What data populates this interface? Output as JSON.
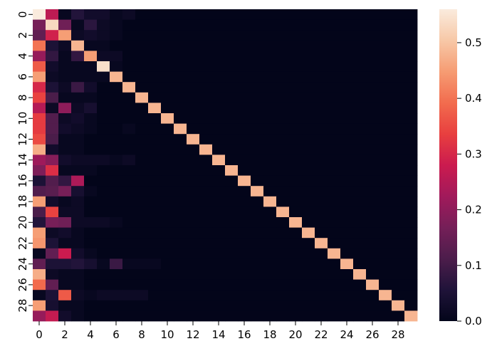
{
  "chart_data": {
    "type": "heatmap",
    "title": "",
    "xlabel": "",
    "ylabel": "",
    "rows": 30,
    "cols": 30,
    "x_tick_labels": [
      "0",
      "2",
      "4",
      "6",
      "8",
      "10",
      "12",
      "14",
      "16",
      "18",
      "20",
      "22",
      "24",
      "26",
      "28"
    ],
    "y_tick_labels": [
      "0",
      "2",
      "4",
      "6",
      "8",
      "10",
      "12",
      "14",
      "16",
      "18",
      "20",
      "22",
      "24",
      "26",
      "28"
    ],
    "x_tick_values": [
      0,
      2,
      4,
      6,
      8,
      10,
      12,
      14,
      16,
      18,
      20,
      22,
      24,
      26,
      28
    ],
    "y_tick_values": [
      0,
      2,
      4,
      6,
      8,
      10,
      12,
      14,
      16,
      18,
      20,
      22,
      24,
      26,
      28
    ],
    "colorbar": {
      "vmin": 0.0,
      "vmax": 0.56,
      "ticks": [
        0.0,
        0.1,
        0.2,
        0.3,
        0.4,
        0.5
      ],
      "tick_labels": [
        "0.0",
        "0.1",
        "0.2",
        "0.3",
        "0.4",
        "0.5"
      ],
      "colormap": "rocket",
      "stops": [
        {
          "v": 0.0,
          "color": "#03051a"
        },
        {
          "v": 0.1,
          "color": "#1f1339"
        },
        {
          "v": 0.2,
          "color": "#4c1d4b"
        },
        {
          "v": 0.3,
          "color": "#751f58"
        },
        {
          "v": 0.4,
          "color": "#a11a5b"
        },
        {
          "v": 0.5,
          "color": "#cb1b4f"
        },
        {
          "v": 0.6,
          "color": "#e83f3f"
        },
        {
          "v": 0.7,
          "color": "#f26c4e"
        },
        {
          "v": 0.8,
          "color": "#f69c73"
        },
        {
          "v": 0.9,
          "color": "#f7c8a7"
        },
        {
          "v": 1.0,
          "color": "#faebdd"
        }
      ]
    },
    "values": [
      [
        0.56,
        0.26,
        0.01,
        0.06,
        0.03,
        0.03,
        0.01,
        0.02,
        0,
        0,
        0,
        0,
        0,
        0,
        0,
        0,
        0,
        0,
        0,
        0,
        0,
        0,
        0,
        0,
        0,
        0,
        0,
        0,
        0,
        0
      ],
      [
        0.17,
        0.53,
        0.16,
        0.01,
        0.07,
        0.02,
        0.01,
        0,
        0,
        0,
        0,
        0,
        0,
        0,
        0,
        0,
        0,
        0,
        0,
        0,
        0,
        0,
        0,
        0,
        0,
        0,
        0,
        0,
        0,
        0
      ],
      [
        0.14,
        0.29,
        0.45,
        0.02,
        0.03,
        0.02,
        0.01,
        0,
        0,
        0,
        0,
        0,
        0,
        0,
        0,
        0,
        0,
        0,
        0,
        0,
        0,
        0,
        0,
        0,
        0,
        0,
        0,
        0,
        0,
        0
      ],
      [
        0.4,
        0.05,
        0.02,
        0.48,
        0.01,
        0.01,
        0,
        0,
        0,
        0,
        0,
        0,
        0,
        0,
        0,
        0,
        0,
        0,
        0,
        0,
        0,
        0,
        0,
        0,
        0,
        0,
        0,
        0,
        0,
        0
      ],
      [
        0.21,
        0.08,
        0.01,
        0.08,
        0.45,
        0.02,
        0.02,
        0,
        0,
        0,
        0,
        0,
        0,
        0,
        0,
        0,
        0,
        0,
        0,
        0,
        0,
        0,
        0,
        0,
        0,
        0,
        0,
        0,
        0,
        0
      ],
      [
        0.37,
        0.03,
        0.01,
        0.01,
        0.01,
        0.54,
        0.01,
        0,
        0,
        0,
        0,
        0,
        0,
        0,
        0,
        0,
        0,
        0,
        0,
        0,
        0,
        0,
        0,
        0,
        0,
        0,
        0,
        0,
        0,
        0
      ],
      [
        0.45,
        0.02,
        0.01,
        0.01,
        0.01,
        0.01,
        0.48,
        0,
        0,
        0,
        0,
        0,
        0,
        0,
        0,
        0,
        0,
        0,
        0,
        0,
        0,
        0,
        0,
        0,
        0,
        0,
        0,
        0,
        0,
        0
      ],
      [
        0.3,
        0.05,
        0.02,
        0.09,
        0.03,
        0,
        0,
        0.48,
        0,
        0,
        0,
        0,
        0,
        0,
        0,
        0,
        0,
        0,
        0,
        0,
        0,
        0,
        0,
        0,
        0,
        0,
        0,
        0,
        0,
        0
      ],
      [
        0.34,
        0.11,
        0.01,
        0.01,
        0.01,
        0,
        0,
        0,
        0.48,
        0,
        0,
        0,
        0,
        0,
        0,
        0,
        0,
        0,
        0,
        0,
        0,
        0,
        0,
        0,
        0,
        0,
        0,
        0,
        0,
        0
      ],
      [
        0.25,
        0.02,
        0.2,
        0.02,
        0.04,
        0,
        0,
        0,
        0,
        0.48,
        0,
        0,
        0,
        0,
        0,
        0,
        0,
        0,
        0,
        0,
        0,
        0,
        0,
        0,
        0,
        0,
        0,
        0,
        0,
        0
      ],
      [
        0.33,
        0.12,
        0.02,
        0.03,
        0.01,
        0,
        0,
        0,
        0,
        0,
        0.48,
        0,
        0,
        0,
        0,
        0,
        0,
        0,
        0,
        0,
        0,
        0,
        0,
        0,
        0,
        0,
        0,
        0,
        0,
        0
      ],
      [
        0.33,
        0.12,
        0.03,
        0.02,
        0.01,
        0,
        0,
        0.01,
        0,
        0,
        0,
        0.48,
        0,
        0,
        0,
        0,
        0,
        0,
        0,
        0,
        0,
        0,
        0,
        0,
        0,
        0,
        0,
        0,
        0,
        0
      ],
      [
        0.35,
        0.11,
        0.01,
        0.01,
        0,
        0,
        0,
        0,
        0,
        0,
        0,
        0,
        0.48,
        0,
        0,
        0,
        0,
        0,
        0,
        0,
        0,
        0,
        0,
        0,
        0,
        0,
        0,
        0,
        0,
        0
      ],
      [
        0.47,
        0.03,
        0.01,
        0.01,
        0,
        0,
        0,
        0,
        0,
        0,
        0,
        0,
        0,
        0.48,
        0,
        0,
        0,
        0,
        0,
        0,
        0,
        0,
        0,
        0,
        0,
        0,
        0,
        0,
        0,
        0
      ],
      [
        0.22,
        0.19,
        0.03,
        0.02,
        0.02,
        0.02,
        0.01,
        0.02,
        0,
        0,
        0,
        0,
        0,
        0,
        0.48,
        0,
        0,
        0,
        0,
        0,
        0,
        0,
        0,
        0,
        0,
        0,
        0,
        0,
        0,
        0
      ],
      [
        0.18,
        0.31,
        0.01,
        0.01,
        0.01,
        0,
        0,
        0,
        0,
        0,
        0,
        0,
        0,
        0,
        0,
        0.48,
        0,
        0,
        0,
        0,
        0,
        0,
        0,
        0,
        0,
        0,
        0,
        0,
        0,
        0
      ],
      [
        0.05,
        0.12,
        0.08,
        0.24,
        0,
        0,
        0,
        0,
        0,
        0,
        0,
        0,
        0,
        0,
        0,
        0,
        0.48,
        0,
        0,
        0,
        0,
        0,
        0,
        0,
        0,
        0,
        0,
        0,
        0,
        0
      ],
      [
        0.12,
        0.13,
        0.17,
        0.04,
        0.01,
        0,
        0,
        0,
        0,
        0,
        0,
        0,
        0,
        0,
        0,
        0,
        0,
        0.48,
        0,
        0,
        0,
        0,
        0,
        0,
        0,
        0,
        0,
        0,
        0,
        0
      ],
      [
        0.45,
        0.03,
        0.01,
        0.02,
        0,
        0,
        0,
        0,
        0,
        0,
        0,
        0,
        0,
        0,
        0,
        0,
        0,
        0,
        0.48,
        0,
        0,
        0,
        0,
        0,
        0,
        0,
        0,
        0,
        0,
        0
      ],
      [
        0.11,
        0.34,
        0.02,
        0.02,
        0,
        0,
        0,
        0,
        0,
        0,
        0,
        0,
        0,
        0,
        0,
        0,
        0,
        0,
        0,
        0.48,
        0,
        0,
        0,
        0,
        0,
        0,
        0,
        0,
        0,
        0
      ],
      [
        0.06,
        0.17,
        0.16,
        0.02,
        0.02,
        0.02,
        0.01,
        0,
        0,
        0,
        0,
        0,
        0,
        0,
        0,
        0,
        0,
        0,
        0,
        0,
        0.48,
        0,
        0,
        0,
        0,
        0,
        0,
        0,
        0,
        0
      ],
      [
        0.45,
        0.02,
        0.03,
        0.01,
        0,
        0,
        0,
        0,
        0,
        0,
        0,
        0,
        0,
        0,
        0,
        0,
        0,
        0,
        0,
        0,
        0,
        0.48,
        0,
        0,
        0,
        0,
        0,
        0,
        0,
        0
      ],
      [
        0.44,
        0.05,
        0.01,
        0.01,
        0,
        0,
        0,
        0,
        0,
        0,
        0,
        0,
        0,
        0,
        0,
        0,
        0,
        0,
        0,
        0,
        0,
        0,
        0.48,
        0,
        0,
        0,
        0,
        0,
        0,
        0
      ],
      [
        0.01,
        0.14,
        0.28,
        0.03,
        0.01,
        0,
        0,
        0,
        0,
        0,
        0,
        0,
        0,
        0,
        0,
        0,
        0,
        0,
        0,
        0,
        0,
        0,
        0,
        0.48,
        0,
        0,
        0,
        0,
        0,
        0
      ],
      [
        0.14,
        0.05,
        0.05,
        0.06,
        0.04,
        0.01,
        0.09,
        0.01,
        0.01,
        0.01,
        0,
        0,
        0,
        0,
        0,
        0,
        0,
        0,
        0,
        0,
        0,
        0,
        0,
        0,
        0.48,
        0,
        0,
        0,
        0,
        0
      ],
      [
        0.47,
        0.02,
        0.01,
        0.01,
        0,
        0,
        0,
        0,
        0,
        0,
        0,
        0,
        0,
        0,
        0,
        0,
        0,
        0,
        0,
        0,
        0,
        0,
        0,
        0,
        0,
        0.48,
        0,
        0,
        0,
        0
      ],
      [
        0.39,
        0.14,
        0.01,
        0.01,
        0,
        0,
        0,
        0,
        0,
        0,
        0,
        0,
        0,
        0,
        0,
        0,
        0,
        0,
        0,
        0,
        0,
        0,
        0,
        0,
        0,
        0,
        0.48,
        0,
        0,
        0
      ],
      [
        0.01,
        0.05,
        0.37,
        0.02,
        0.01,
        0.02,
        0.02,
        0.02,
        0.02,
        0,
        0,
        0,
        0,
        0,
        0,
        0,
        0,
        0,
        0,
        0,
        0,
        0,
        0,
        0,
        0,
        0,
        0,
        0.48,
        0,
        0
      ],
      [
        0.45,
        0.04,
        0.01,
        0.01,
        0,
        0,
        0,
        0,
        0,
        0,
        0,
        0,
        0,
        0,
        0,
        0,
        0,
        0,
        0,
        0,
        0,
        0,
        0,
        0,
        0,
        0,
        0,
        0,
        0.48,
        0
      ],
      [
        0.21,
        0.27,
        0.03,
        0.01,
        0,
        0,
        0,
        0,
        0,
        0,
        0,
        0,
        0,
        0,
        0,
        0,
        0,
        0,
        0,
        0,
        0,
        0,
        0,
        0,
        0,
        0,
        0,
        0,
        0,
        0.48
      ]
    ]
  }
}
